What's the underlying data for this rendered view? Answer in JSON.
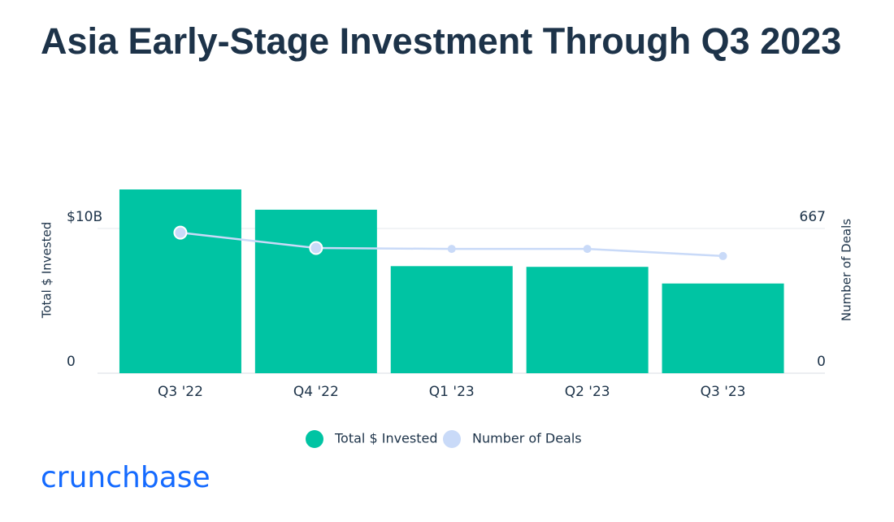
{
  "chart_data": {
    "type": "bar_line",
    "title": "Asia Early-Stage Investment Through Q3 2023",
    "categories": [
      "Q3 '22",
      "Q4 '22",
      "Q1 '23",
      "Q2 '23",
      "Q3 '23"
    ],
    "series": [
      {
        "name": "Total $ Invested",
        "type": "bar",
        "color": "#00c4a3",
        "values": [
          12.7,
          11.3,
          7.4,
          7.35,
          6.2
        ]
      },
      {
        "name": "Number of Deals",
        "type": "line",
        "axis": "y2",
        "color": "#c9daf8",
        "values": [
          648,
          577,
          573,
          573,
          540
        ]
      }
    ],
    "ylabel": "Total $ Invested",
    "y2label": "Number of Deals",
    "ylim": [
      0,
      13.15
    ],
    "yticks": [
      0,
      {
        "value": 10,
        "label": "$10B"
      }
    ],
    "y2lim": [
      0,
      877
    ],
    "y2ticks": [
      0,
      667
    ],
    "grid": true,
    "legend": "bottom",
    "brand": "crunchbase"
  }
}
